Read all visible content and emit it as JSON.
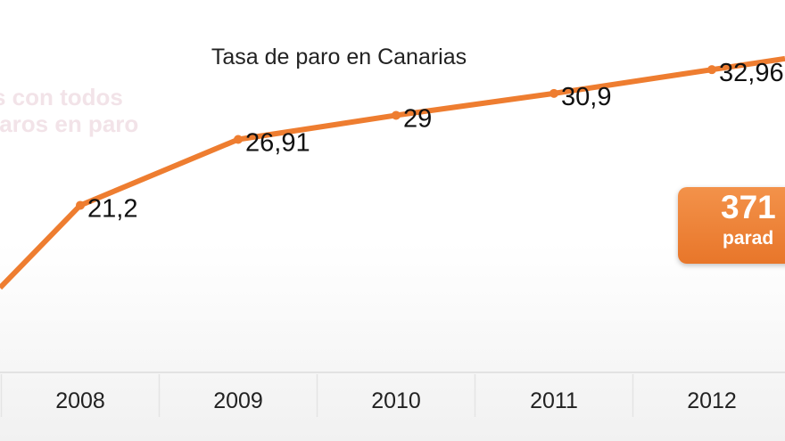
{
  "background_text": {
    "line1": "s con todos",
    "line2": "iaros en paro"
  },
  "badge": {
    "number": "371",
    "text": "parad"
  },
  "colors": {
    "line": "#ee7d30",
    "badge": "#ee7d30"
  },
  "chart_data": {
    "type": "line",
    "title": "Tasa de paro en Canarias",
    "x": [
      "2008",
      "2009",
      "2010",
      "2011",
      "2012"
    ],
    "series": [
      {
        "values": [
          21.2,
          26.91,
          29,
          30.9,
          32.96
        ],
        "labels": [
          "21,2",
          "26,91",
          "29",
          "30,9",
          "32,96"
        ]
      }
    ],
    "ylim": [
      0,
      40
    ],
    "grid": false,
    "legend": "none"
  }
}
